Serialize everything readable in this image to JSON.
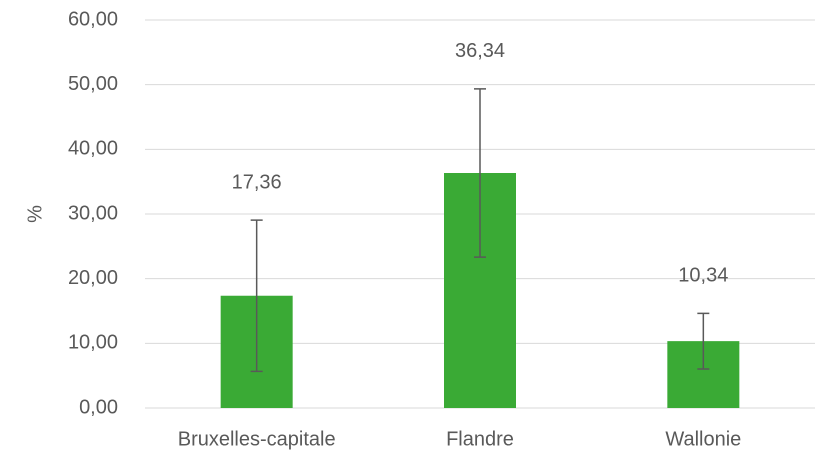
{
  "chart_data": {
    "type": "bar",
    "y_label": "%",
    "categories": [
      "Bruxelles-capitale",
      "Flandre",
      "Wallonie"
    ],
    "values": [
      17.36,
      36.34,
      10.34
    ],
    "value_labels": [
      "17,36",
      "36,34",
      "10,34"
    ],
    "errors": [
      11.7,
      13,
      4.3
    ],
    "color": "#3aaa35",
    "ylim": [
      0,
      60
    ],
    "yticks": [
      {
        "value": 0,
        "label": "0,00"
      },
      {
        "value": 10,
        "label": "10,00"
      },
      {
        "value": 20,
        "label": "20,00"
      },
      {
        "value": 30,
        "label": "30,00"
      },
      {
        "value": 40,
        "label": "40,00"
      },
      {
        "value": 50,
        "label": "50,00"
      },
      {
        "value": 60,
        "label": "60,00"
      }
    ],
    "grid": true
  }
}
